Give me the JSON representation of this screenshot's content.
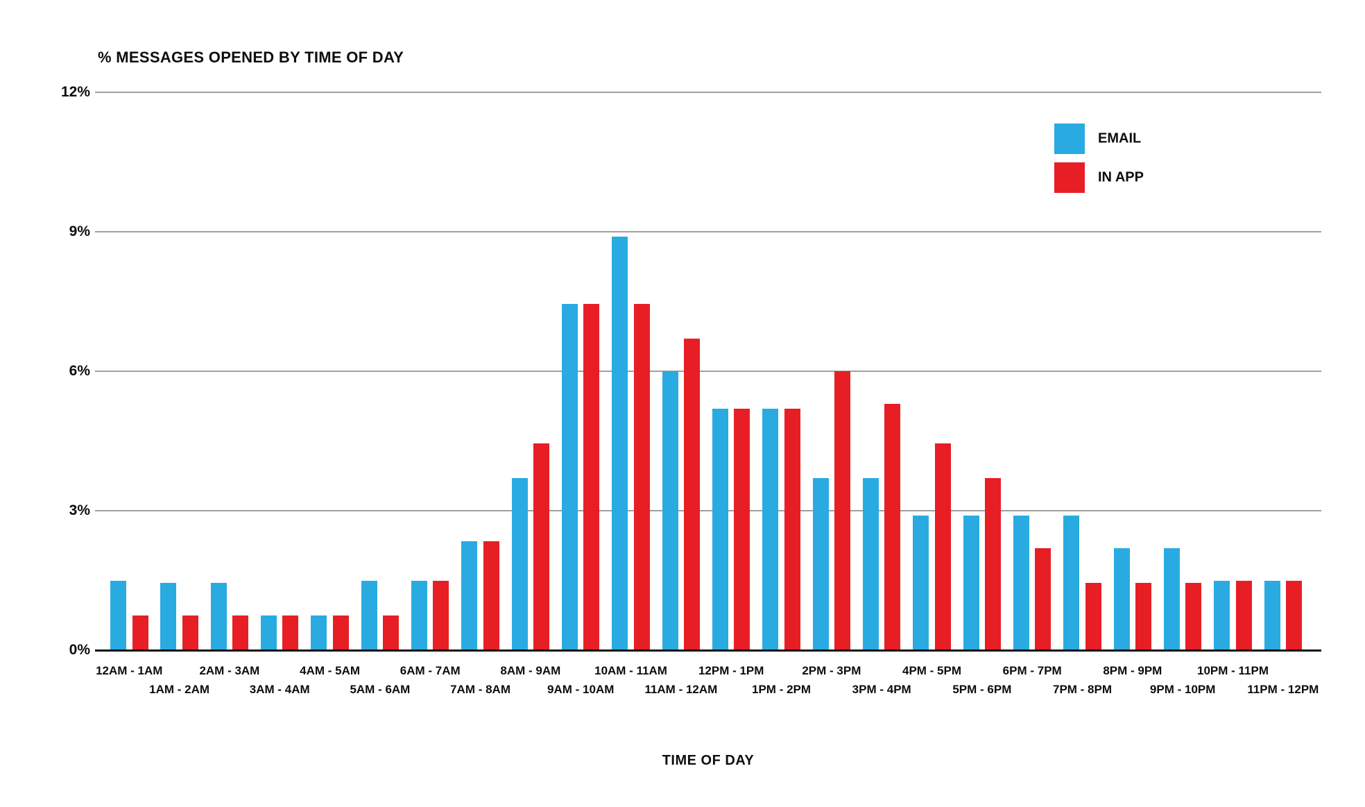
{
  "title": "% MESSAGES OPENED BY TIME OF DAY",
  "x_axis_title": "TIME OF DAY",
  "colors": {
    "email_blue": "#29ABE2",
    "inapp_red": "#E81E25",
    "gridline_gray": "#9F9F9F",
    "baseline_black": "#111111",
    "text_black": "#0D0D0D",
    "background": "#FFFFFF"
  },
  "legend": {
    "items": [
      {
        "label": "EMAIL",
        "color": "#29ABE2"
      },
      {
        "label": "IN APP",
        "color": "#E81E25"
      }
    ]
  },
  "chart_data": {
    "type": "bar",
    "title": "% MESSAGES OPENED BY TIME OF DAY",
    "xlabel": "TIME OF DAY",
    "ylabel": "",
    "ylim": [
      0,
      12
    ],
    "grid": "horizontal",
    "legend_position": "top-right",
    "yticks": [
      {
        "value": 12,
        "label": "12%"
      },
      {
        "value": 9,
        "label": "9%"
      },
      {
        "value": 6,
        "label": "6%"
      },
      {
        "value": 3,
        "label": "3%"
      },
      {
        "value": 0,
        "label": "0%"
      }
    ],
    "categories": [
      "12AM - 1AM",
      "1AM - 2AM",
      "2AM - 3AM",
      "3AM - 4AM",
      "4AM - 5AM",
      "5AM - 6AM",
      "6AM - 7AM",
      "7AM - 8AM",
      "8AM - 9AM",
      "9AM - 10AM",
      "10AM - 11AM",
      "11AM - 12AM",
      "12PM - 1PM",
      "1PM - 2PM",
      "2PM - 3PM",
      "3PM - 4PM",
      "4PM - 5PM",
      "5PM - 6PM",
      "6PM - 7PM",
      "7PM - 8PM",
      "8PM - 9PM",
      "9PM - 10PM",
      "10PM - 11PM",
      "11PM - 12PM"
    ],
    "series": [
      {
        "name": "EMAIL",
        "color": "#29ABE2",
        "values": [
          1.5,
          1.45,
          1.45,
          0.75,
          0.75,
          1.5,
          1.5,
          2.35,
          3.7,
          7.45,
          8.9,
          6.0,
          5.2,
          5.2,
          3.7,
          3.7,
          2.9,
          2.9,
          2.9,
          2.9,
          2.2,
          2.2,
          1.5,
          1.5
        ]
      },
      {
        "name": "IN APP",
        "color": "#E81E25",
        "values": [
          0.75,
          0.75,
          0.75,
          0.75,
          0.75,
          0.75,
          1.5,
          2.35,
          4.45,
          7.45,
          7.45,
          6.7,
          5.2,
          5.2,
          6.0,
          5.3,
          4.45,
          3.7,
          2.2,
          1.45,
          1.45,
          1.45,
          1.5,
          1.5
        ]
      }
    ]
  }
}
